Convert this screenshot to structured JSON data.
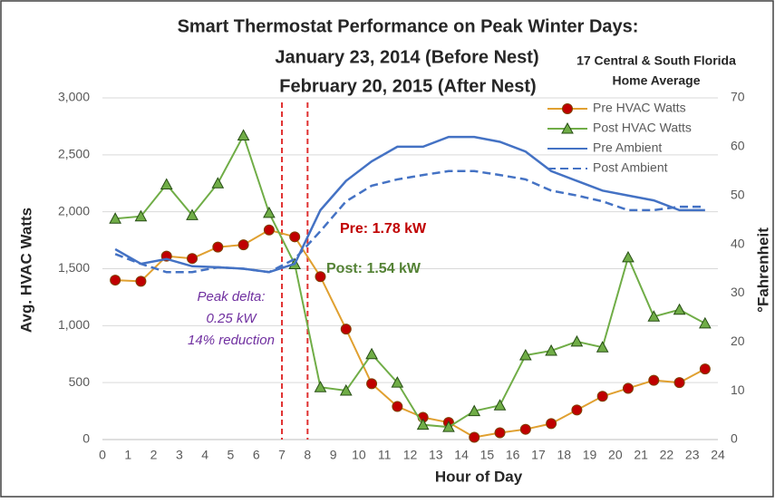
{
  "chart_data": {
    "type": "line",
    "title": [
      "Smart Thermostat Performance on Peak Winter Days:",
      "January 23, 2014 (Before Nest)",
      "February 20, 2015 (After Nest)"
    ],
    "subtitle": [
      "17 Central & South Florida",
      "Home Average"
    ],
    "xlabel": "Hour of Day",
    "ylabel": "Avg. HVAC Watts",
    "y2label": "°Fahrenheit",
    "x": [
      0.5,
      1.5,
      2.5,
      3.5,
      4.5,
      5.5,
      6.5,
      7.5,
      8.5,
      9.5,
      10.5,
      11.5,
      12.5,
      13.5,
      14.5,
      15.5,
      16.5,
      17.5,
      18.5,
      19.5,
      20.5,
      21.5,
      22.5,
      23.5
    ],
    "xlim": [
      0,
      24
    ],
    "xticks": [
      0,
      1,
      2,
      3,
      4,
      5,
      6,
      7,
      8,
      9,
      10,
      11,
      12,
      13,
      14,
      15,
      16,
      17,
      18,
      19,
      20,
      21,
      22,
      23,
      24
    ],
    "ylim": [
      0,
      3000
    ],
    "yticks": [
      0,
      500,
      {
        "value": 1000,
        "label": "1,000"
      },
      {
        "value": 1500,
        "label": "1,500"
      },
      {
        "value": 2000,
        "label": "2,000"
      },
      {
        "value": 2500,
        "label": "2,500"
      },
      {
        "value": 3000,
        "label": "3,000"
      }
    ],
    "y2lim": [
      0,
      70
    ],
    "y2ticks": [
      0,
      10,
      20,
      30,
      40,
      50,
      60,
      70
    ],
    "grid": true,
    "legend": "upper right",
    "series": [
      {
        "name": "Pre HVAC Watts",
        "color": "#e0a030",
        "marker": "circle",
        "marker_color": "#c00000",
        "values": [
          1400,
          1390,
          1610,
          1590,
          1690,
          1710,
          1840,
          1780,
          1430,
          970,
          490,
          290,
          195,
          150,
          20,
          60,
          90,
          140,
          260,
          380,
          450,
          520,
          500,
          620
        ]
      },
      {
        "name": "Post HVAC Watts",
        "color": "#70ad47",
        "marker": "triangle",
        "marker_color": "#70ad47",
        "values": [
          1940,
          1960,
          2240,
          1970,
          2250,
          2670,
          1990,
          1540,
          460,
          430,
          750,
          500,
          130,
          110,
          250,
          300,
          740,
          780,
          860,
          810,
          1600,
          1080,
          1140,
          1020
        ]
      },
      {
        "name": "Pre Ambient",
        "color": "#4472c4",
        "axis": "y2",
        "dash": false,
        "values": [
          39,
          36,
          37,
          35.5,
          35.3,
          35,
          34.3,
          36,
          47,
          53,
          57,
          60,
          60,
          62,
          62,
          61,
          59,
          55,
          53,
          51,
          50,
          49,
          47,
          47
        ]
      },
      {
        "name": "Post Ambient",
        "color": "#4472c4",
        "axis": "y2",
        "dash": true,
        "values": [
          38,
          36,
          34.3,
          34.3,
          35.3,
          35,
          34.3,
          37,
          42.7,
          48.8,
          52,
          53.3,
          54.2,
          55,
          55,
          54.2,
          53.3,
          51,
          50,
          48.8,
          47,
          47,
          47.7,
          47.7
        ]
      }
    ],
    "vlines": [
      7,
      8
    ],
    "annotations": [
      "Pre: 1.78 kW",
      "Post: 1.54 kW",
      "Peak delta:",
      "0.25 kW",
      "14% reduction"
    ]
  }
}
